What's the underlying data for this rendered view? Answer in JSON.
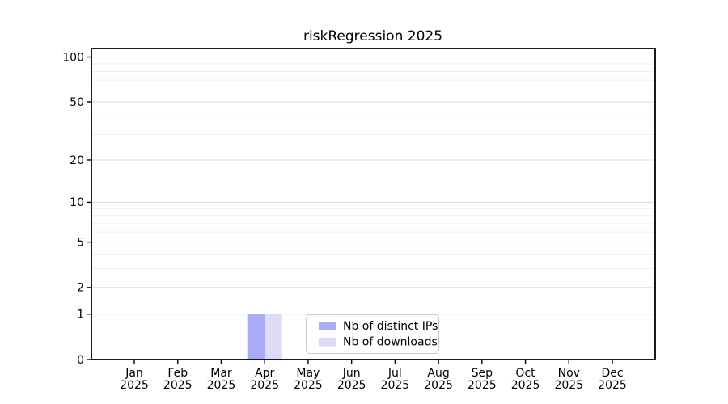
{
  "page": {
    "background": "#ffffff"
  },
  "chart_data": {
    "type": "bar",
    "title": "riskRegression 2025",
    "categories": [
      "Jan 2025",
      "Feb 2025",
      "Mar 2025",
      "Apr 2025",
      "May 2025",
      "Jun 2025",
      "Jul 2025",
      "Aug 2025",
      "Sep 2025",
      "Oct 2025",
      "Nov 2025",
      "Dec 2025"
    ],
    "series": [
      {
        "name": "Nb of distinct IPs",
        "color": "#abacf7",
        "values": [
          0,
          0,
          0,
          1,
          0,
          0,
          0,
          0,
          0,
          0,
          0,
          0
        ]
      },
      {
        "name": "Nb of downloads",
        "color": "#dcdcf8",
        "values": [
          0,
          0,
          0,
          1,
          0,
          0,
          0,
          0,
          0,
          0,
          0,
          0
        ]
      }
    ],
    "y_axis": {
      "scale": "log1p",
      "tick_values": [
        0,
        1,
        2,
        5,
        10,
        20,
        50,
        100
      ],
      "minor_tick_values": [
        3,
        4,
        6,
        7,
        8,
        9,
        30,
        40,
        60,
        70,
        80,
        90
      ],
      "top_value": 114
    },
    "legend": {
      "position": "lower center"
    },
    "grid": "horizontal",
    "style": {
      "grid_major_color": "#dadada",
      "grid_top_color": "#b9b9b9",
      "grid_minor_color": "#efefef",
      "axis_color": "#000000"
    }
  }
}
